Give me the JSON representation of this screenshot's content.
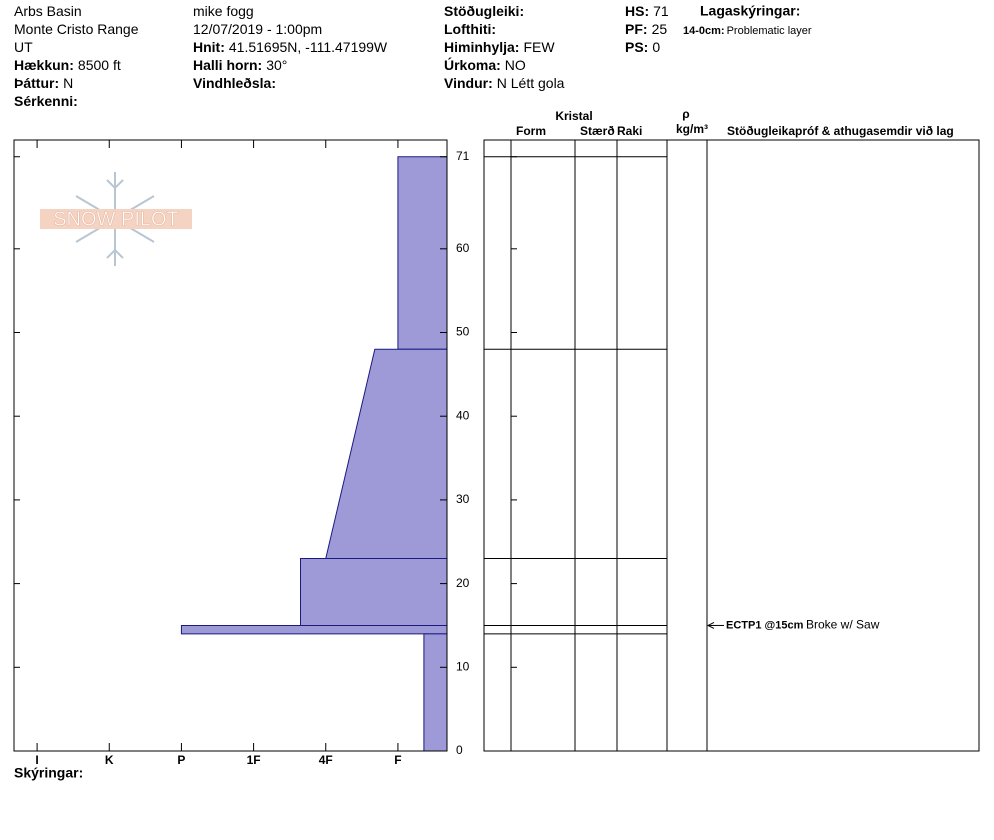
{
  "header": {
    "columns": [
      [
        {
          "value": "Arbs Basin"
        },
        {
          "value": "Monte Cristo Range"
        },
        {
          "value": "UT"
        },
        {
          "label": "Hækkun:",
          "value": "8500 ft"
        },
        {
          "label": "Þáttur:",
          "value": "N"
        },
        {
          "label": "Sérkenni:"
        }
      ],
      [
        {
          "value": "mike fogg"
        },
        {
          "value": "12/07/2019 - 1:00pm"
        },
        {
          "label": "Hnit:",
          "value": "41.51695N, -111.47199W"
        },
        {
          "label": "Halli horn:",
          "value": "30°"
        },
        {
          "label": "Vindhleðsla:"
        }
      ],
      [
        {
          "label": "Stöðugleiki:"
        },
        {
          "label": "Lofthiti:"
        },
        {
          "label": "Himinhylja:",
          "value": "FEW"
        },
        {
          "label": "Úrkoma:",
          "value": "NO"
        },
        {
          "label": "Vindur:",
          "value": "N Létt gola"
        }
      ],
      [
        {
          "label": "HS:",
          "value": "71"
        },
        {
          "label": "PF:",
          "value": "25"
        },
        {
          "label": "PS:",
          "value": "0"
        }
      ]
    ],
    "layer_notes_title": "Lagaskýringar:",
    "layer_notes": [
      {
        "label": "14-0cm:",
        "value": "Problematic layer"
      }
    ],
    "logo": "SNOW PILOT"
  },
  "table_headers": {
    "crystal": "Kristal",
    "form": "Form",
    "size": "Stærð",
    "moisture": "Raki",
    "density_symbol": "ρ",
    "density_unit": "kg/m³",
    "tests": "Stöðugleikapróf & athugasemdir við lag"
  },
  "chart_data": {
    "type": "hardness-profile",
    "ylim": [
      0,
      73
    ],
    "yticks": [
      0,
      10,
      20,
      30,
      40,
      50,
      60,
      71
    ],
    "xlim": [
      0.68,
      6.68
    ],
    "xticks": [
      {
        "value": 1,
        "label": "I"
      },
      {
        "value": 2,
        "label": "K"
      },
      {
        "value": 3,
        "label": "P"
      },
      {
        "value": 4,
        "label": "1F"
      },
      {
        "value": 5,
        "label": "4F"
      },
      {
        "value": 6,
        "label": "F"
      }
    ],
    "color": "#9e9ad8",
    "layers": [
      {
        "top": 71,
        "bottom": 48,
        "hardness_top": 6,
        "hardness_bottom": 6
      },
      {
        "top": 48,
        "bottom": 23,
        "hardness_top": 5.68,
        "hardness_bottom": 5
      },
      {
        "top": 23,
        "bottom": 15,
        "hardness_top": 4.65,
        "hardness_bottom": 4.65
      },
      {
        "top": 15,
        "bottom": 14,
        "hardness_top": 3,
        "hardness_bottom": 3
      },
      {
        "top": 14,
        "bottom": 0,
        "hardness_top": 6.36,
        "hardness_bottom": 6.36
      }
    ],
    "tests": [
      {
        "depth": 15,
        "label": "ECTP1 @15cm",
        "comment": "Broke w/ Saw"
      }
    ],
    "comments_label": "Skýringar:"
  }
}
